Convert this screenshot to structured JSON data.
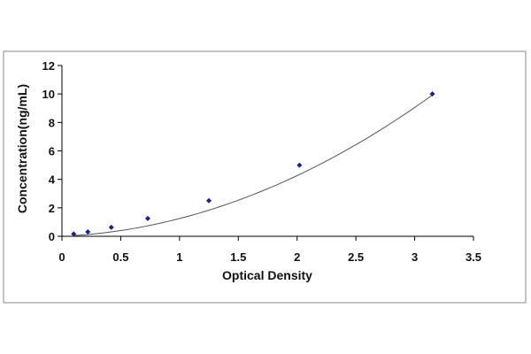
{
  "chart_data": {
    "type": "scatter",
    "title": "",
    "xlabel": "Optical Density",
    "ylabel": "Concentration(ng/mL)",
    "xlim": [
      0,
      3.5
    ],
    "ylim": [
      0,
      12
    ],
    "x_ticks": [
      0,
      0.5,
      1,
      1.5,
      2,
      2.5,
      3,
      3.5
    ],
    "x_tick_labels": [
      "0",
      "0.5",
      "1",
      "1.5",
      "2",
      "2.5",
      "3",
      "3.5"
    ],
    "y_ticks": [
      0,
      2,
      4,
      6,
      8,
      10,
      12
    ],
    "y_tick_labels": [
      "0",
      "2",
      "4",
      "6",
      "8",
      "10",
      "12"
    ],
    "grid": false,
    "legend": "none",
    "trendline": "smooth-fit",
    "series": [
      {
        "points": [
          {
            "x": 0.1,
            "y": 0.16
          },
          {
            "x": 0.22,
            "y": 0.31
          },
          {
            "x": 0.42,
            "y": 0.63
          },
          {
            "x": 0.73,
            "y": 1.25
          },
          {
            "x": 1.25,
            "y": 2.5
          },
          {
            "x": 2.02,
            "y": 5.0
          },
          {
            "x": 3.15,
            "y": 10.0
          }
        ]
      }
    ],
    "colors": {
      "marker": "#1a237e",
      "line": "#555555",
      "axis": "#000000",
      "frame": "#888888"
    }
  }
}
